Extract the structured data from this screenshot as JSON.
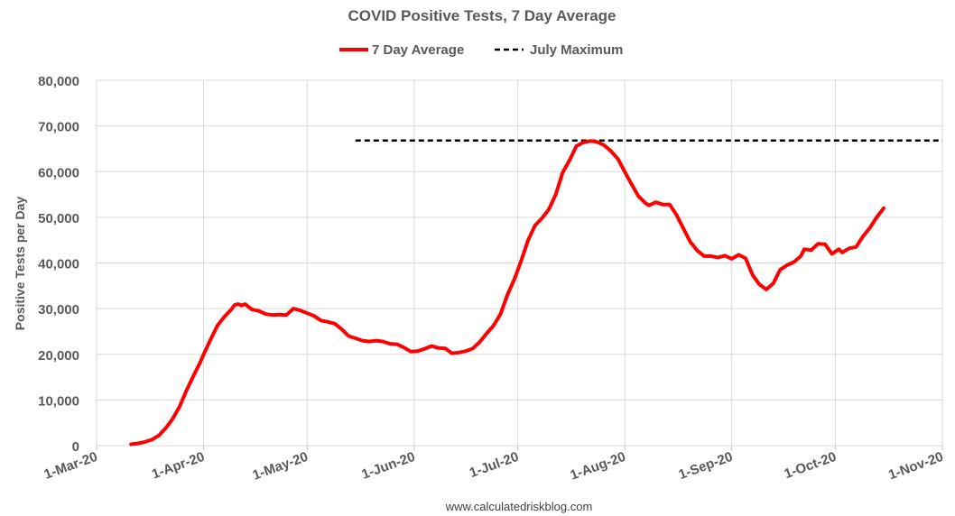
{
  "chart_data": {
    "type": "line",
    "title": "COVID Positive Tests, 7 Day Average",
    "xlabel": "",
    "ylabel": "Positive Tests per Day",
    "source_text": "www.calculatedriskblog.com",
    "x_range": [
      "2020-03-01",
      "2020-11-01"
    ],
    "x_ticks": [
      {
        "date": "2020-03-01",
        "label": "1-Mar-20"
      },
      {
        "date": "2020-04-01",
        "label": "1-Apr-20"
      },
      {
        "date": "2020-05-01",
        "label": "1-May-20"
      },
      {
        "date": "2020-06-01",
        "label": "1-Jun-20"
      },
      {
        "date": "2020-07-01",
        "label": "1-Jul-20"
      },
      {
        "date": "2020-08-01",
        "label": "1-Aug-20"
      },
      {
        "date": "2020-09-01",
        "label": "1-Sep-20"
      },
      {
        "date": "2020-10-01",
        "label": "1-Oct-20"
      },
      {
        "date": "2020-11-01",
        "label": "1-Nov-20"
      }
    ],
    "ylim": [
      0,
      80000
    ],
    "y_ticks": [
      {
        "value": 0,
        "label": "0"
      },
      {
        "value": 10000,
        "label": "10,000"
      },
      {
        "value": 20000,
        "label": "20,000"
      },
      {
        "value": 30000,
        "label": "30,000"
      },
      {
        "value": 40000,
        "label": "40,000"
      },
      {
        "value": 50000,
        "label": "50,000"
      },
      {
        "value": 60000,
        "label": "60,000"
      },
      {
        "value": 70000,
        "label": "70,000"
      },
      {
        "value": 80000,
        "label": "80,000"
      }
    ],
    "grid": true,
    "legend_position": "top-center",
    "series": [
      {
        "name": "7 Day Average",
        "color": "#ff0000",
        "style": "solid",
        "points": [
          [
            "2020-03-11",
            300
          ],
          [
            "2020-03-13",
            500
          ],
          [
            "2020-03-15",
            800
          ],
          [
            "2020-03-17",
            1300
          ],
          [
            "2020-03-19",
            2200
          ],
          [
            "2020-03-21",
            3800
          ],
          [
            "2020-03-23",
            5800
          ],
          [
            "2020-03-25",
            8500
          ],
          [
            "2020-03-27",
            12000
          ],
          [
            "2020-03-29",
            15200
          ],
          [
            "2020-03-31",
            18200
          ],
          [
            "2020-04-01",
            20000
          ],
          [
            "2020-04-03",
            23200
          ],
          [
            "2020-04-05",
            26300
          ],
          [
            "2020-04-07",
            28200
          ],
          [
            "2020-04-09",
            29800
          ],
          [
            "2020-04-10",
            30800
          ],
          [
            "2020-04-11",
            31000
          ],
          [
            "2020-04-12",
            30700
          ],
          [
            "2020-04-13",
            31000
          ],
          [
            "2020-04-15",
            29800
          ],
          [
            "2020-04-17",
            29500
          ],
          [
            "2020-04-19",
            28800
          ],
          [
            "2020-04-21",
            28600
          ],
          [
            "2020-04-23",
            28700
          ],
          [
            "2020-04-25",
            28600
          ],
          [
            "2020-04-27",
            30000
          ],
          [
            "2020-04-29",
            29600
          ],
          [
            "2020-05-01",
            29000
          ],
          [
            "2020-05-03",
            28400
          ],
          [
            "2020-05-05",
            27400
          ],
          [
            "2020-05-07",
            27100
          ],
          [
            "2020-05-09",
            26700
          ],
          [
            "2020-05-11",
            25500
          ],
          [
            "2020-05-13",
            24000
          ],
          [
            "2020-05-15",
            23500
          ],
          [
            "2020-05-17",
            23000
          ],
          [
            "2020-05-19",
            22800
          ],
          [
            "2020-05-21",
            23000
          ],
          [
            "2020-05-23",
            22800
          ],
          [
            "2020-05-25",
            22300
          ],
          [
            "2020-05-27",
            22200
          ],
          [
            "2020-05-29",
            21500
          ],
          [
            "2020-05-31",
            20600
          ],
          [
            "2020-06-02",
            20700
          ],
          [
            "2020-06-04",
            21200
          ],
          [
            "2020-06-06",
            21800
          ],
          [
            "2020-06-08",
            21400
          ],
          [
            "2020-06-10",
            21300
          ],
          [
            "2020-06-12",
            20200
          ],
          [
            "2020-06-14",
            20400
          ],
          [
            "2020-06-16",
            20700
          ],
          [
            "2020-06-18",
            21300
          ],
          [
            "2020-06-20",
            22700
          ],
          [
            "2020-06-22",
            24600
          ],
          [
            "2020-06-24",
            26300
          ],
          [
            "2020-06-26",
            28800
          ],
          [
            "2020-06-28",
            33000
          ],
          [
            "2020-06-30",
            36400
          ],
          [
            "2020-07-02",
            40500
          ],
          [
            "2020-07-04",
            45000
          ],
          [
            "2020-07-06",
            48200
          ],
          [
            "2020-07-08",
            49800
          ],
          [
            "2020-07-10",
            51700
          ],
          [
            "2020-07-12",
            55000
          ],
          [
            "2020-07-14",
            59800
          ],
          [
            "2020-07-16",
            62500
          ],
          [
            "2020-07-18",
            65600
          ],
          [
            "2020-07-20",
            66400
          ],
          [
            "2020-07-22",
            66700
          ],
          [
            "2020-07-24",
            66500
          ],
          [
            "2020-07-26",
            65800
          ],
          [
            "2020-07-28",
            64500
          ],
          [
            "2020-07-30",
            62800
          ],
          [
            "2020-08-01",
            60000
          ],
          [
            "2020-08-03",
            57200
          ],
          [
            "2020-08-05",
            54600
          ],
          [
            "2020-08-07",
            53100
          ],
          [
            "2020-08-08",
            52600
          ],
          [
            "2020-08-10",
            53300
          ],
          [
            "2020-08-12",
            52800
          ],
          [
            "2020-08-14",
            52800
          ],
          [
            "2020-08-16",
            50500
          ],
          [
            "2020-08-18",
            47500
          ],
          [
            "2020-08-20",
            44600
          ],
          [
            "2020-08-22",
            42700
          ],
          [
            "2020-08-24",
            41500
          ],
          [
            "2020-08-26",
            41500
          ],
          [
            "2020-08-28",
            41200
          ],
          [
            "2020-08-30",
            41600
          ],
          [
            "2020-09-01",
            40900
          ],
          [
            "2020-09-03",
            41800
          ],
          [
            "2020-09-05",
            41000
          ],
          [
            "2020-09-07",
            37400
          ],
          [
            "2020-09-09",
            35300
          ],
          [
            "2020-09-11",
            34200
          ],
          [
            "2020-09-13",
            35500
          ],
          [
            "2020-09-15",
            38500
          ],
          [
            "2020-09-17",
            39500
          ],
          [
            "2020-09-19",
            40200
          ],
          [
            "2020-09-21",
            41500
          ],
          [
            "2020-09-22",
            43000
          ],
          [
            "2020-09-24",
            42800
          ],
          [
            "2020-09-26",
            44200
          ],
          [
            "2020-09-28",
            44100
          ],
          [
            "2020-09-30",
            42000
          ],
          [
            "2020-10-02",
            43000
          ],
          [
            "2020-10-03",
            42300
          ],
          [
            "2020-10-05",
            43200
          ],
          [
            "2020-10-07",
            43500
          ],
          [
            "2020-10-09",
            45800
          ],
          [
            "2020-10-11",
            47700
          ],
          [
            "2020-10-13",
            50000
          ],
          [
            "2020-10-15",
            52000
          ]
        ]
      },
      {
        "name": "July Maximum",
        "color": "#000000",
        "style": "dashed",
        "points": [
          [
            "2020-05-15",
            66800
          ],
          [
            "2020-11-01",
            66800
          ]
        ]
      }
    ]
  }
}
